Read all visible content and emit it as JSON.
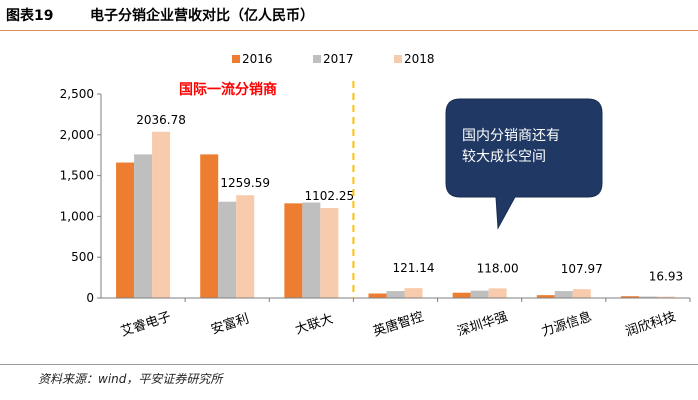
{
  "figure": {
    "label": "图表19",
    "title": "电子分销企业营收对比（亿人民币）",
    "source": "资料来源：wind，平安证券研究所"
  },
  "chart_data": {
    "type": "bar",
    "categories": [
      "艾睿电子",
      "安富利",
      "大联大",
      "英唐智控",
      "深圳华强",
      "力源信息",
      "润欣科技"
    ],
    "series": [
      {
        "name": "2016",
        "color": "#ed7d31",
        "values": [
          1660,
          1760,
          1160,
          55,
          65,
          35,
          22
        ]
      },
      {
        "name": "2017",
        "color": "#bfbfbf",
        "values": [
          1760,
          1180,
          1170,
          85,
          90,
          85,
          18
        ]
      },
      {
        "name": "2018",
        "color": "#f8cbad",
        "values": [
          2036.78,
          1259.59,
          1102.25,
          121.14,
          118.0,
          107.97,
          16.93
        ]
      }
    ],
    "data_labels": [
      "2036.78",
      "1259.59",
      "1102.25",
      "121.14",
      "118.00",
      "107.97",
      "16.93"
    ],
    "ylim": [
      0,
      2500
    ],
    "yticks": [
      "0",
      "500",
      "1,000",
      "1,500",
      "2,000",
      "2,500"
    ],
    "ytick_values": [
      0,
      500,
      1000,
      1500,
      2000,
      2500
    ],
    "legend_position": "top",
    "grid": false,
    "annotations": {
      "group_label": "国际一流分销商",
      "group_label_color": "#ff0000",
      "divider_color": "#ffc000",
      "callout_lines": [
        "国内分销商还有",
        "较大成长空间"
      ],
      "callout_color": "#1f3864"
    }
  }
}
